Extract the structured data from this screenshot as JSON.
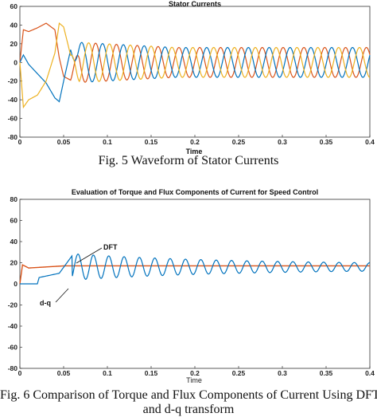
{
  "chart_data": [
    {
      "type": "line",
      "title": "Stator Currents",
      "xlabel": "Time",
      "ylabel": "",
      "xlim": [
        0,
        0.4
      ],
      "ylim": [
        -80,
        60
      ],
      "x_ticks": [
        "0",
        "0.05",
        "0.1",
        "0.15",
        "0.2",
        "0.25",
        "0.3",
        "0.35",
        "0.4"
      ],
      "y_ticks": [
        "60",
        "40",
        "20",
        "0",
        "-20",
        "-40",
        "-60",
        "-80"
      ],
      "grid": false,
      "series": [
        {
          "color": "#d95319",
          "description_points": {
            "x": [
              0,
              0.004,
              0.01,
              0.02,
              0.03,
              0.04,
              0.045,
              0.05,
              0.06,
              0.1,
              0.2,
              0.3,
              0.4
            ],
            "y": [
              0,
              35,
              33,
              37,
              42,
              35,
              5,
              -15,
              -20,
              20,
              18,
              17,
              16
            ]
          }
        },
        {
          "color": "#0072bd",
          "description_points": {
            "x": [
              0,
              0.004,
              0.01,
              0.02,
              0.03,
              0.04,
              0.045,
              0.05,
              0.06,
              0.1,
              0.2,
              0.3,
              0.4
            ],
            "y": [
              0,
              8,
              -2,
              -12,
              -22,
              -38,
              -42,
              -20,
              22,
              18,
              17,
              16,
              15
            ]
          }
        },
        {
          "color": "#edb120",
          "description_points": {
            "x": [
              0,
              0.004,
              0.01,
              0.02,
              0.03,
              0.04,
              0.045,
              0.05,
              0.06,
              0.1,
              0.2,
              0.3,
              0.4
            ],
            "y": [
              0,
              -48,
              -40,
              -35,
              -20,
              10,
              42,
              38,
              0,
              -20,
              -18,
              -17,
              -16
            ]
          }
        }
      ],
      "caption": "Fig. 5 Waveform of Stator Currents"
    },
    {
      "type": "line",
      "title": "Evaluation of Torque and Flux Components of Current for Speed Control",
      "xlabel": "Time",
      "ylabel": "",
      "xlim": [
        0,
        0.4
      ],
      "ylim": [
        -80,
        80
      ],
      "x_ticks": [
        "0",
        "0.05",
        "0.1",
        "0.15",
        "0.2",
        "0.25",
        "0.3",
        "0.35",
        "0.4"
      ],
      "y_ticks": [
        "80",
        "60",
        "40",
        "20",
        "0",
        "-20",
        "-40",
        "-60",
        "-80"
      ],
      "grid": false,
      "annotations": [
        "DFT",
        "d-q"
      ],
      "series": [
        {
          "color": "#d95319",
          "description_points": {
            "x": [
              0,
              0.003,
              0.01,
              0.05,
              0.4
            ],
            "y": [
              0,
              18,
              15,
              17,
              17
            ]
          }
        },
        {
          "color": "#0072bd",
          "description_points": {
            "x": [
              0,
              0.02,
              0.022,
              0.045,
              0.065,
              0.4
            ],
            "y": [
              0,
              0,
              6,
              10,
              27,
              16
            ]
          }
        }
      ],
      "caption_line1": "Fig. 6 Comparison of Torque and Flux Components of Current Using DFT",
      "caption_line2": "and d-q transform"
    }
  ]
}
